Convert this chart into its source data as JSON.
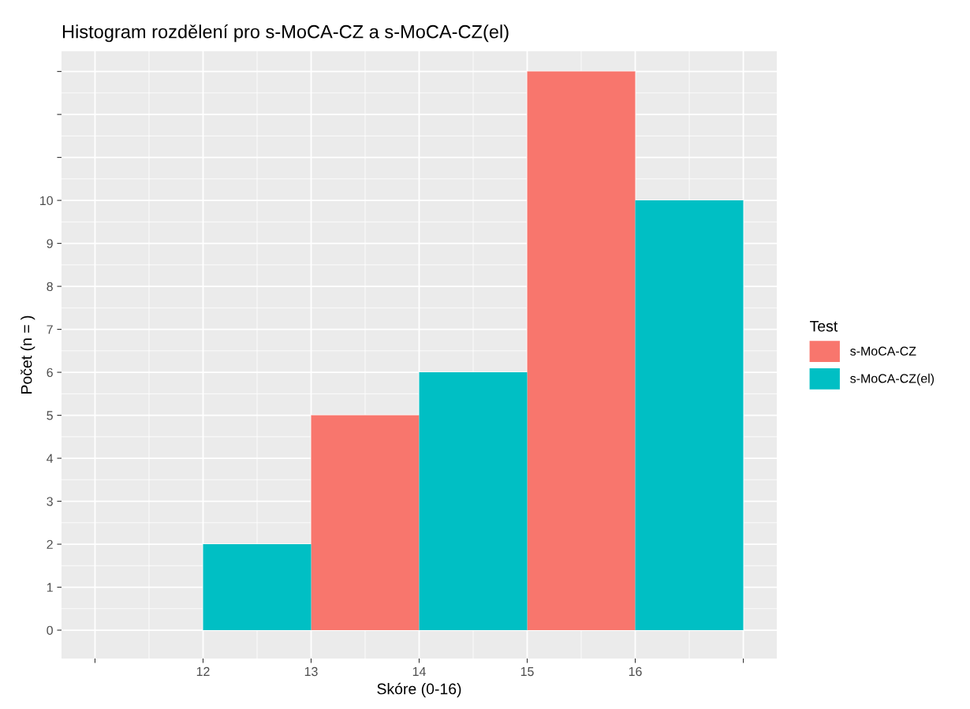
{
  "chart_data": {
    "type": "histogram",
    "title": "Histogram rozdělení pro s-MoCA-CZ a s-MoCA-CZ(el)",
    "xlabel": "Skóre (0-16)",
    "ylabel": "Počet (n = )",
    "legend_title": "Test",
    "bins": [
      12,
      13,
      14,
      15,
      16,
      17
    ],
    "series": [
      {
        "name": "s-MoCA-CZ",
        "color": "#f8766d",
        "values": [
          null,
          5,
          null,
          13,
          null
        ]
      },
      {
        "name": "s-MoCA-CZ(el)",
        "color": "#00bfc4",
        "values": [
          2,
          null,
          6,
          null,
          10
        ]
      }
    ],
    "xlim": [
      10.69,
      17.31
    ],
    "ylim": [
      -0.66,
      13.47
    ],
    "xticks": [
      {
        "value": 11,
        "label": null
      },
      12,
      13,
      14,
      15,
      16,
      {
        "value": 17,
        "label": null
      }
    ],
    "yticks": [
      0,
      1,
      2,
      3,
      4,
      5,
      6,
      7,
      8,
      9,
      10,
      {
        "value": 11,
        "label": null
      },
      {
        "value": 12,
        "label": null
      },
      {
        "value": 13,
        "label": null
      }
    ],
    "grid": true,
    "legend": "right"
  }
}
